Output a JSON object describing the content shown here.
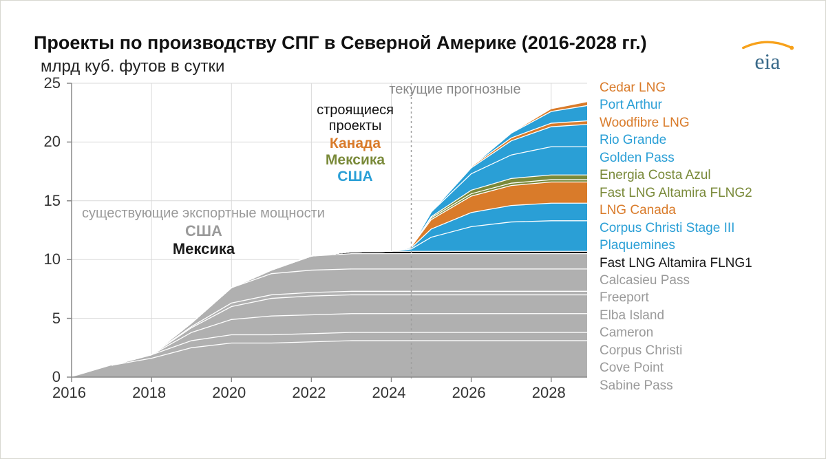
{
  "title": "Проекты по производству СПГ в Северной Америке (2016-2028 гг.)",
  "subtitle": "млрд куб. футов в сутки",
  "logo_text": "eia",
  "logo_color_text": "#3a6a8a",
  "logo_color_swoosh": "#f7a11a",
  "chart": {
    "type": "stacked-area",
    "xlim": [
      2016,
      2028.9
    ],
    "ylim": [
      0,
      25
    ],
    "xticks": [
      2016,
      2018,
      2020,
      2022,
      2024,
      2026,
      2028
    ],
    "yticks": [
      0,
      5,
      10,
      15,
      20,
      25
    ],
    "grid_color": "#d9d9d9",
    "axis_color": "#888888",
    "tick_fontsize": 22,
    "tick_color": "#333333",
    "forecast_line_x": 2024.5,
    "forecast_line_color": "#9e9e9e",
    "series_colors": {
      "gray": "#b0b0b0",
      "black": "#1a1a1a",
      "blue": "#2a9fd6",
      "orange": "#d97b2a",
      "olive": "#7a8a3a"
    },
    "divider_color": "#ffffff",
    "divider_width": 1.3,
    "annotations": {
      "forecast_label": {
        "text": "текущие прогнозные",
        "color": "#888888",
        "fontsize": 20
      },
      "building_header": {
        "text": "строящиеся\nпроекты",
        "color": "#111111",
        "fontsize": 20
      },
      "building_canada": {
        "text": "Канада",
        "color": "#d97b2a",
        "fontsize": 21
      },
      "building_mexico": {
        "text": "Мексика",
        "color": "#7a8a3a",
        "fontsize": 21
      },
      "building_usa": {
        "text": "США",
        "color": "#2a9fd6",
        "fontsize": 21
      },
      "existing_header": {
        "text": "существующие экспортные мощности",
        "color": "#9a9a9a",
        "fontsize": 20
      },
      "existing_usa": {
        "text": "США",
        "color": "#9a9a9a",
        "fontsize": 22,
        "bold": true
      },
      "existing_mexico": {
        "text": "Мексика",
        "color": "#1a1a1a",
        "fontsize": 22,
        "bold": true
      }
    },
    "x_values": [
      2016,
      2017,
      2018,
      2019,
      2020,
      2021,
      2022,
      2023,
      2024,
      2024.5,
      2025,
      2026,
      2027,
      2028,
      2028.9
    ],
    "series": [
      {
        "name": "Sabine Pass",
        "color": "gray",
        "v": [
          0.0,
          1.0,
          1.6,
          2.5,
          2.9,
          2.9,
          3.0,
          3.1,
          3.1,
          3.1,
          3.1,
          3.1,
          3.1,
          3.1,
          3.1
        ]
      },
      {
        "name": "Cove Point",
        "color": "gray",
        "v": [
          0,
          0,
          0.3,
          0.6,
          0.7,
          0.7,
          0.7,
          0.7,
          0.7,
          0.7,
          0.7,
          0.7,
          0.7,
          0.7,
          0.7
        ]
      },
      {
        "name": "Corpus Christi",
        "color": "gray",
        "v": [
          0,
          0,
          0,
          0.7,
          1.3,
          1.6,
          1.6,
          1.6,
          1.6,
          1.6,
          1.6,
          1.6,
          1.6,
          1.6,
          1.6
        ]
      },
      {
        "name": "Cameron",
        "color": "gray",
        "v": [
          0,
          0,
          0,
          0.4,
          1.1,
          1.5,
          1.6,
          1.6,
          1.6,
          1.6,
          1.6,
          1.6,
          1.6,
          1.6,
          1.6
        ]
      },
      {
        "name": "Elba Island",
        "color": "gray",
        "v": [
          0,
          0,
          0,
          0.1,
          0.3,
          0.3,
          0.3,
          0.3,
          0.3,
          0.3,
          0.3,
          0.3,
          0.3,
          0.3,
          0.3
        ]
      },
      {
        "name": "Freeport",
        "color": "gray",
        "v": [
          0,
          0,
          0,
          0.3,
          1.3,
          1.8,
          1.9,
          1.9,
          1.9,
          1.9,
          1.9,
          1.9,
          1.9,
          1.9,
          1.9
        ]
      },
      {
        "name": "Calcasieu Pass",
        "color": "gray",
        "v": [
          0,
          0,
          0,
          0,
          0,
          0.3,
          1.2,
          1.3,
          1.3,
          1.3,
          1.3,
          1.3,
          1.3,
          1.3,
          1.3
        ]
      },
      {
        "name": "Fast LNG Altamira FLNG1",
        "color": "black",
        "v": [
          0,
          0,
          0,
          0,
          0,
          0,
          0,
          0.15,
          0.2,
          0.2,
          0.2,
          0.2,
          0.2,
          0.2,
          0.2
        ]
      },
      {
        "name": "Plaquemines",
        "color": "blue",
        "v": [
          0,
          0,
          0,
          0,
          0,
          0,
          0,
          0,
          0,
          0.2,
          1.2,
          2.1,
          2.5,
          2.6,
          2.6
        ]
      },
      {
        "name": "Corpus Christi Stage III",
        "color": "blue",
        "v": [
          0,
          0,
          0,
          0,
          0,
          0,
          0,
          0,
          0,
          0.1,
          0.7,
          1.2,
          1.4,
          1.5,
          1.5
        ]
      },
      {
        "name": "LNG Canada",
        "color": "orange",
        "v": [
          0,
          0,
          0,
          0,
          0,
          0,
          0,
          0,
          0,
          0.1,
          0.8,
          1.4,
          1.7,
          1.8,
          1.8
        ]
      },
      {
        "name": "Fast LNG Altamira FLNG2",
        "color": "olive",
        "v": [
          0,
          0,
          0,
          0,
          0,
          0,
          0,
          0,
          0,
          0,
          0.15,
          0.2,
          0.2,
          0.2,
          0.2
        ]
      },
      {
        "name": "Energia Costa Azul",
        "color": "olive",
        "v": [
          0,
          0,
          0,
          0,
          0,
          0,
          0,
          0,
          0,
          0,
          0.1,
          0.3,
          0.4,
          0.4,
          0.4
        ]
      },
      {
        "name": "Golden Pass",
        "color": "blue",
        "v": [
          0,
          0,
          0,
          0,
          0,
          0,
          0,
          0,
          0,
          0,
          0.4,
          1.4,
          2.0,
          2.4,
          2.4
        ]
      },
      {
        "name": "Rio Grande",
        "color": "blue",
        "v": [
          0,
          0,
          0,
          0,
          0,
          0,
          0,
          0,
          0,
          0,
          0,
          0.5,
          1.2,
          1.7,
          1.9
        ]
      },
      {
        "name": "Woodfibre LNG",
        "color": "orange",
        "v": [
          0,
          0,
          0,
          0,
          0,
          0,
          0,
          0,
          0,
          0,
          0,
          0.1,
          0.25,
          0.3,
          0.3
        ]
      },
      {
        "name": "Port Arthur",
        "color": "blue",
        "v": [
          0,
          0,
          0,
          0,
          0,
          0,
          0,
          0,
          0,
          0,
          0,
          0,
          0.4,
          1.0,
          1.3
        ]
      },
      {
        "name": "Cedar LNG",
        "color": "orange",
        "v": [
          0,
          0,
          0,
          0,
          0,
          0,
          0,
          0,
          0,
          0,
          0,
          0,
          0,
          0.2,
          0.3
        ]
      }
    ]
  },
  "legend_items": [
    {
      "label": "Cedar LNG",
      "color": "#d97b2a"
    },
    {
      "label": "Port Arthur",
      "color": "#2a9fd6"
    },
    {
      "label": "Woodfibre LNG",
      "color": "#d97b2a"
    },
    {
      "label": "Rio Grande",
      "color": "#2a9fd6"
    },
    {
      "label": "Golden Pass",
      "color": "#2a9fd6"
    },
    {
      "label": "Energia Costa Azul",
      "color": "#7a8a3a"
    },
    {
      "label": "Fast LNG Altamira FLNG2",
      "color": "#7a8a3a"
    },
    {
      "label": "LNG Canada",
      "color": "#d97b2a"
    },
    {
      "label": "Corpus Christi Stage III",
      "color": "#2a9fd6"
    },
    {
      "label": "Plaquemines",
      "color": "#2a9fd6"
    },
    {
      "label": "Fast LNG Altamira FLNG1",
      "color": "#1a1a1a"
    },
    {
      "label": "Calcasieu Pass",
      "color": "#9a9a9a"
    },
    {
      "label": "Freeport",
      "color": "#9a9a9a"
    },
    {
      "label": "Elba Island",
      "color": "#9a9a9a"
    },
    {
      "label": "Cameron",
      "color": "#9a9a9a"
    },
    {
      "label": "Corpus Christi",
      "color": "#9a9a9a"
    },
    {
      "label": "Cove Point",
      "color": "#9a9a9a"
    },
    {
      "label": "Sabine Pass",
      "color": "#9a9a9a"
    }
  ]
}
